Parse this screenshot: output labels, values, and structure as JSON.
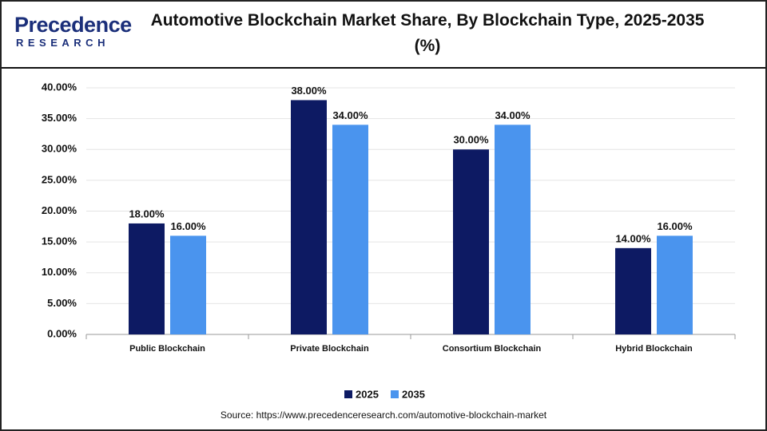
{
  "logo": {
    "name": "Precedence",
    "tagline": "RESEARCH"
  },
  "chart_data": {
    "type": "bar",
    "title": "Automotive Blockchain Market Share, By Blockchain Type, 2025-2035 (%)",
    "source": "Source: https://www.precedenceresearch.com/automotive-blockchain-market",
    "categories": [
      "Public Blockchain",
      "Private Blockchain",
      "Consortium Blockchain",
      "Hybrid Blockchain"
    ],
    "series": [
      {
        "name": "2025",
        "color": "#0d1a63",
        "values": [
          18,
          38,
          30,
          14
        ],
        "value_labels": [
          "18.00%",
          "38.00%",
          "30.00%",
          "14.00%"
        ]
      },
      {
        "name": "2035",
        "color": "#4a94ee",
        "values": [
          16,
          34,
          34,
          16
        ],
        "value_labels": [
          "16.00%",
          "34.00%",
          "34.00%",
          "16.00%"
        ]
      }
    ],
    "ylim": [
      0,
      40
    ],
    "yticks": [
      {
        "value": 0,
        "label": "0.00%"
      },
      {
        "value": 5,
        "label": "5.00%"
      },
      {
        "value": 10,
        "label": "10.00%"
      },
      {
        "value": 15,
        "label": "15.00%"
      },
      {
        "value": 20,
        "label": "20.00%"
      },
      {
        "value": 25,
        "label": "25.00%"
      },
      {
        "value": 30,
        "label": "30.00%"
      },
      {
        "value": 35,
        "label": "35.00%"
      },
      {
        "value": 40,
        "label": "40.00%"
      }
    ],
    "grid": true,
    "legend": "bottom"
  }
}
